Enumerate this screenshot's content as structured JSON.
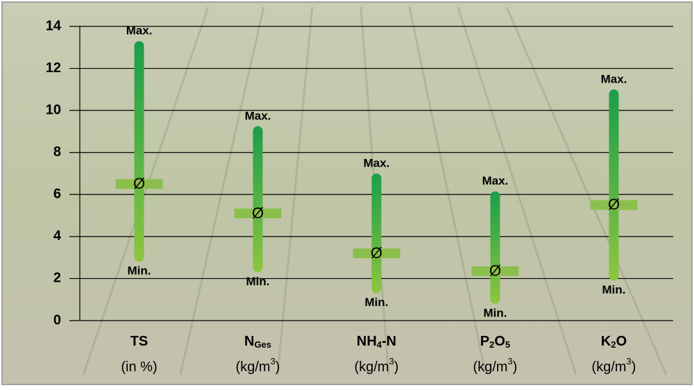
{
  "chart_data": {
    "type": "range",
    "categories": [
      [
        {
          "t": "TS"
        }
      ],
      [
        {
          "t": "N"
        },
        {
          "t": "Ges",
          "sub": true
        }
      ],
      [
        {
          "t": "NH"
        },
        {
          "t": "4",
          "sub": true
        },
        {
          "t": "-N"
        }
      ],
      [
        {
          "t": "P"
        },
        {
          "t": "2",
          "sub": true
        },
        {
          "t": "O"
        },
        {
          "t": "5",
          "sub": true
        }
      ],
      [
        {
          "t": "K"
        },
        {
          "t": "2",
          "sub": true
        },
        {
          "t": "O"
        }
      ]
    ],
    "units": [
      [
        {
          "t": "(in %)"
        }
      ],
      [
        {
          "t": "(kg/m"
        },
        {
          "t": "3",
          "sup": true
        },
        {
          "t": ")"
        }
      ],
      [
        {
          "t": "(kg/m"
        },
        {
          "t": "3",
          "sup": true
        },
        {
          "t": ")"
        }
      ],
      [
        {
          "t": "(kg/m"
        },
        {
          "t": "3",
          "sup": true
        },
        {
          "t": ")"
        }
      ],
      [
        {
          "t": "(kg/m"
        },
        {
          "t": "3",
          "sup": true
        },
        {
          "t": ")"
        }
      ]
    ],
    "max": [
      13.3,
      9.25,
      7.0,
      6.15,
      11.0
    ],
    "min": [
      2.8,
      2.3,
      1.3,
      0.8,
      1.9
    ],
    "mean": [
      6.5,
      5.1,
      3.2,
      2.35,
      5.5
    ],
    "max_label": "Max.",
    "min_label": "Min.",
    "mean_label": "Ø",
    "colors": {
      "top": "#1a9e4a",
      "bottom": "#8dc63f",
      "mean": "#8bbf4c"
    },
    "ylim": [
      0,
      14
    ],
    "yticks": [
      0,
      2,
      4,
      6,
      8,
      10,
      12,
      14
    ],
    "grid": true
  }
}
